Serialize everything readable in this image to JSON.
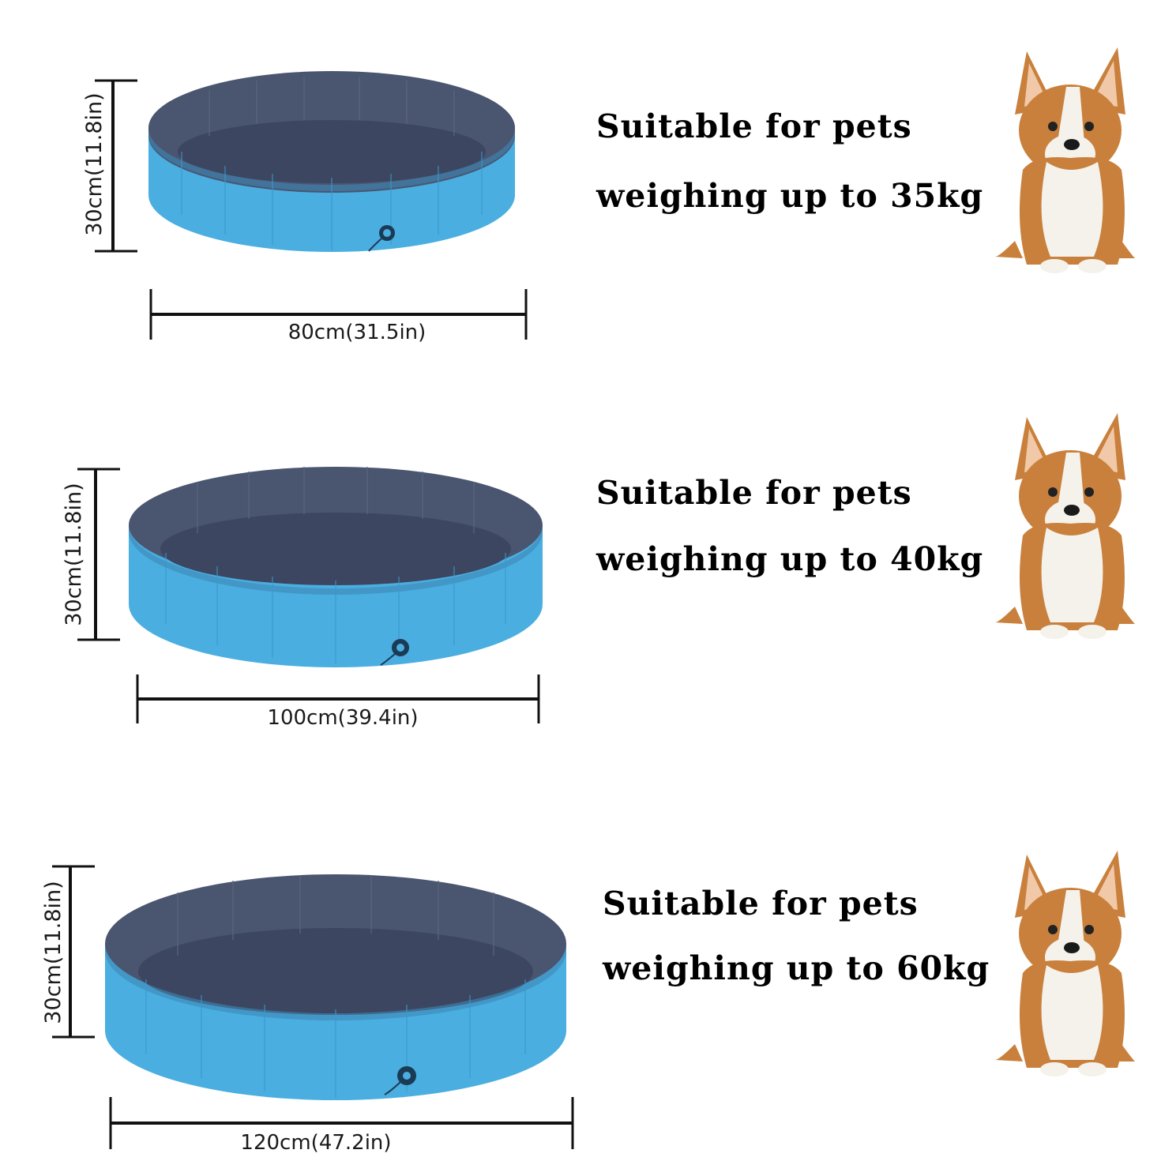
{
  "products": [
    {
      "height_label": "30cm(11.8in)",
      "width_label": "80cm(31.5in)",
      "caption_line1": "Suitable for pets",
      "caption_line2": "weighing up to 35kg"
    },
    {
      "height_label": "30cm(11.8in)",
      "width_label": "100cm(39.4in)",
      "caption_line1": "Suitable for pets",
      "caption_line2": "weighing up to 40kg"
    },
    {
      "height_label": "30cm(11.8in)",
      "width_label": "120cm(47.2in)",
      "caption_line1": "Suitable for pets",
      "caption_line2": "weighing up to 60kg"
    }
  ],
  "colors": {
    "pool_outer": "#4aaee0",
    "pool_outer_dark": "#3a98cc",
    "pool_inner": "#4a5570",
    "pool_floor": "#3c4660",
    "dimension_line": "#111111",
    "dog_fur": "#c9803c",
    "dog_white": "#f5f2ec"
  },
  "icons": [
    "pool-image",
    "corgi-dog-image",
    "drain-valve-icon"
  ]
}
